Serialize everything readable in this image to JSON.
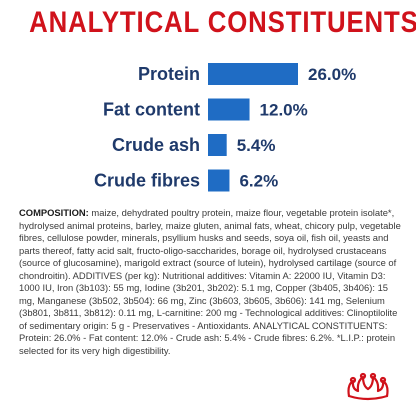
{
  "colors": {
    "title": "#d0121b",
    "label": "#1f3a6b",
    "bar": "#1f6cc4",
    "text": "#3a3a3a",
    "logo": "#d0121b"
  },
  "chart_data": {
    "type": "bar",
    "orientation": "horizontal",
    "title": "ANALYTICAL CONSTITUENTS",
    "categories": [
      "Protein",
      "Fat content",
      "Crude ash",
      "Crude fibres"
    ],
    "values": [
      26.0,
      12.0,
      5.4,
      6.2
    ],
    "value_labels": [
      "26.0%",
      "12.0%",
      "5.4%",
      "6.2%"
    ],
    "xlabel": "",
    "ylabel": "",
    "grid": false,
    "legend": "none"
  },
  "composition": {
    "heading": "COMPOSITION:",
    "text": " maize, dehydrated poultry protein, maize flour, vegetable protein isolate*, hydrolysed animal proteins, barley, maize gluten, animal fats, wheat, chicory pulp, vegetable fibres, cellulose powder, minerals, psyllium husks and seeds, soya oil, fish oil, yeasts and parts thereof, fatty acid salt, fructo-oligo-saccharides, borage oil, hydrolysed crustaceans (source of glucosamine), marigold extract (source of lutein), hydrolysed cartilage (source of chondroitin). ADDITIVES (per kg): Nutritional additives: Vitamin A: 22000 IU, Vitamin D3: 1000 IU, Iron (3b103): 55 mg, Iodine (3b201, 3b202): 5.1 mg, Copper (3b405, 3b406): 15 mg, Manganese (3b502, 3b504): 66 mg, Zinc (3b603, 3b605, 3b606): 141 mg, Selenium (3b801, 3b811, 3b812): 0.11 mg, L-carnitine: 200 mg - Technological additives: Clinoptilolite of sedimentary origin: 5 g - Preservatives - Antioxidants. ANALYTICAL CONSTITUENTS: Protein: 26.0% - Fat content: 12.0% - Crude ash: 5.4% - Crude fibres: 6.2%. *L.I.P.: protein selected for its very high digestibility."
  },
  "logo": {
    "icon": "crown-icon"
  }
}
